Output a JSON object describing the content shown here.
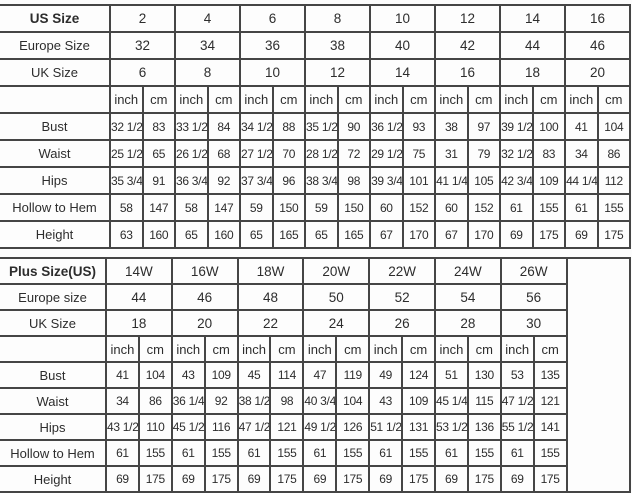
{
  "tables": [
    {
      "name": "us-size-chart",
      "size_label": "US Size",
      "sizes": [
        "2",
        "4",
        "6",
        "8",
        "10",
        "12",
        "14",
        "16"
      ],
      "europe_label": "Europe Size",
      "europe_sizes": [
        "32",
        "34",
        "36",
        "38",
        "40",
        "42",
        "44",
        "46"
      ],
      "uk_label": "UK Size",
      "uk_sizes": [
        "6",
        "8",
        "10",
        "12",
        "14",
        "16",
        "18",
        "20"
      ],
      "unit_headers": [
        "inch",
        "cm"
      ],
      "trailing_empty_column": false,
      "measurements": [
        {
          "label": "Bust",
          "values": [
            [
              "32 1/2",
              "83"
            ],
            [
              "33 1/2",
              "84"
            ],
            [
              "34 1/2",
              "88"
            ],
            [
              "35 1/2",
              "90"
            ],
            [
              "36 1/2",
              "93"
            ],
            [
              "38",
              "97"
            ],
            [
              "39 1/2",
              "100"
            ],
            [
              "41",
              "104"
            ]
          ]
        },
        {
          "label": "Waist",
          "values": [
            [
              "25 1/2",
              "65"
            ],
            [
              "26 1/2",
              "68"
            ],
            [
              "27 1/2",
              "70"
            ],
            [
              "28 1/2",
              "72"
            ],
            [
              "29 1/2",
              "75"
            ],
            [
              "31",
              "79"
            ],
            [
              "32 1/2",
              "83"
            ],
            [
              "34",
              "86"
            ]
          ]
        },
        {
          "label": "Hips",
          "values": [
            [
              "35 3/4",
              "91"
            ],
            [
              "36 3/4",
              "92"
            ],
            [
              "37 3/4",
              "96"
            ],
            [
              "38 3/4",
              "98"
            ],
            [
              "39 3/4",
              "101"
            ],
            [
              "41 1/4",
              "105"
            ],
            [
              "42 3/4",
              "109"
            ],
            [
              "44 1/4",
              "112"
            ]
          ]
        },
        {
          "label": "Hollow to Hem",
          "values": [
            [
              "58",
              "147"
            ],
            [
              "58",
              "147"
            ],
            [
              "59",
              "150"
            ],
            [
              "59",
              "150"
            ],
            [
              "60",
              "152"
            ],
            [
              "60",
              "152"
            ],
            [
              "61",
              "155"
            ],
            [
              "61",
              "155"
            ]
          ]
        },
        {
          "label": "Height",
          "values": [
            [
              "63",
              "160"
            ],
            [
              "65",
              "160"
            ],
            [
              "65",
              "165"
            ],
            [
              "65",
              "165"
            ],
            [
              "67",
              "170"
            ],
            [
              "67",
              "170"
            ],
            [
              "69",
              "175"
            ],
            [
              "69",
              "175"
            ]
          ]
        }
      ]
    },
    {
      "name": "plus-size-chart",
      "size_label": "Plus Size(US)",
      "sizes": [
        "14W",
        "16W",
        "18W",
        "20W",
        "22W",
        "24W",
        "26W"
      ],
      "europe_label": "Europe size",
      "europe_sizes": [
        "44",
        "46",
        "48",
        "50",
        "52",
        "54",
        "56"
      ],
      "uk_label": "UK Size",
      "uk_sizes": [
        "18",
        "20",
        "22",
        "24",
        "26",
        "28",
        "30"
      ],
      "unit_headers": [
        "inch",
        "cm"
      ],
      "trailing_empty_column": true,
      "measurements": [
        {
          "label": "Bust",
          "values": [
            [
              "41",
              "104"
            ],
            [
              "43",
              "109"
            ],
            [
              "45",
              "114"
            ],
            [
              "47",
              "119"
            ],
            [
              "49",
              "124"
            ],
            [
              "51",
              "130"
            ],
            [
              "53",
              "135"
            ]
          ]
        },
        {
          "label": "Waist",
          "values": [
            [
              "34",
              "86"
            ],
            [
              "36 1/4",
              "92"
            ],
            [
              "38 1/2",
              "98"
            ],
            [
              "40 3/4",
              "104"
            ],
            [
              "43",
              "109"
            ],
            [
              "45 1/4",
              "115"
            ],
            [
              "47 1/2",
              "121"
            ]
          ]
        },
        {
          "label": "Hips",
          "values": [
            [
              "43 1/2",
              "110"
            ],
            [
              "45 1/2",
              "116"
            ],
            [
              "47 1/2",
              "121"
            ],
            [
              "49 1/2",
              "126"
            ],
            [
              "51 1/2",
              "131"
            ],
            [
              "53 1/2",
              "136"
            ],
            [
              "55 1/2",
              "141"
            ]
          ]
        },
        {
          "label": "Hollow to Hem",
          "values": [
            [
              "61",
              "155"
            ],
            [
              "61",
              "155"
            ],
            [
              "61",
              "155"
            ],
            [
              "61",
              "155"
            ],
            [
              "61",
              "155"
            ],
            [
              "61",
              "155"
            ],
            [
              "61",
              "155"
            ]
          ]
        },
        {
          "label": "Height",
          "values": [
            [
              "69",
              "175"
            ],
            [
              "69",
              "175"
            ],
            [
              "69",
              "175"
            ],
            [
              "69",
              "175"
            ],
            [
              "69",
              "175"
            ],
            [
              "69",
              "175"
            ],
            [
              "69",
              "175"
            ]
          ]
        }
      ]
    }
  ]
}
